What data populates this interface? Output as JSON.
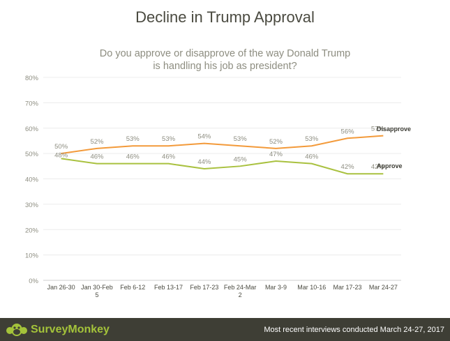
{
  "header": {
    "title": "Decline in Trump Approval",
    "subtitle_line1": "Do you approve or disapprove of the way Donald Trump",
    "subtitle_line2": "is handling his job as president?"
  },
  "chart_data": {
    "type": "line",
    "title": "Decline in Trump Approval",
    "subtitle": "Do you approve or disapprove of the way Donald Trump is handling his job as president?",
    "categories": [
      "Jan 26-30",
      "Jan 30-Feb 5",
      "Feb 6-12",
      "Feb 13-17",
      "Feb 17-23",
      "Feb 24-Mar 2",
      "Mar 3-9",
      "Mar 10-16",
      "Mar 17-23",
      "Mar 24-27"
    ],
    "category_labels": [
      [
        "Jan 26-30"
      ],
      [
        "Jan 30-Feb",
        "5"
      ],
      [
        "Feb 6-12"
      ],
      [
        "Feb 13-17"
      ],
      [
        "Feb 17-23"
      ],
      [
        "Feb 24-Mar",
        "2"
      ],
      [
        "Mar 3-9"
      ],
      [
        "Mar 10-16"
      ],
      [
        "Mar 17-23"
      ],
      [
        "Mar 24-27"
      ]
    ],
    "yticks": [
      "0%",
      "10%",
      "20%",
      "30%",
      "40%",
      "50%",
      "60%",
      "70%",
      "80%"
    ],
    "ylim": [
      0,
      80
    ],
    "grid": true,
    "legend": "end-of-line labels (right)",
    "series": [
      {
        "name": "Disapprove",
        "color": "#f39a3a",
        "values": [
          50,
          52,
          53,
          53,
          54,
          53,
          52,
          53,
          56,
          57
        ],
        "labels": [
          "50%",
          "52%",
          "53%",
          "53%",
          "54%",
          "53%",
          "52%",
          "53%",
          "56%",
          "57%"
        ]
      },
      {
        "name": "Approve",
        "color": "#a9c13f",
        "values": [
          48,
          46,
          46,
          46,
          44,
          45,
          47,
          46,
          42,
          42
        ],
        "labels": [
          "48%",
          "46%",
          "46%",
          "46%",
          "44%",
          "45%",
          "47%",
          "46%",
          "42%",
          "42%"
        ]
      }
    ]
  },
  "footer": {
    "brand": "SurveyMonkey",
    "note": "Most recent interviews conducted March 24-27, 2017",
    "logo_icon": "surveymonkey-logo-icon"
  }
}
